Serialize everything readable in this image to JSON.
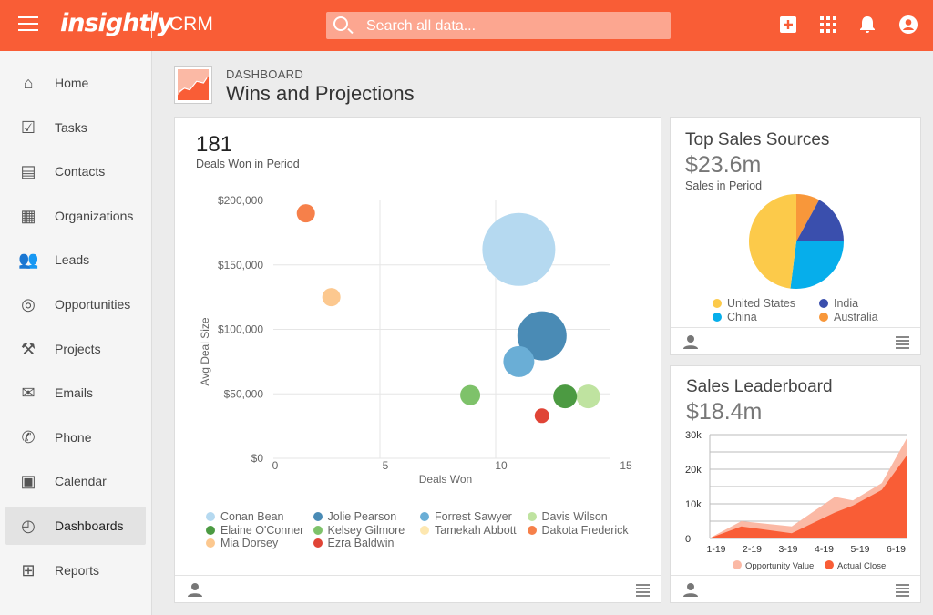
{
  "header": {
    "logo": "insightly",
    "app": "CRM",
    "search_placeholder": "Search all data..."
  },
  "sidebar": {
    "items": [
      {
        "label": "Home",
        "icon": "home-icon"
      },
      {
        "label": "Tasks",
        "icon": "checkbox-icon"
      },
      {
        "label": "Contacts",
        "icon": "contact-card-icon"
      },
      {
        "label": "Organizations",
        "icon": "building-icon"
      },
      {
        "label": "Leads",
        "icon": "people-icon"
      },
      {
        "label": "Opportunities",
        "icon": "target-icon"
      },
      {
        "label": "Projects",
        "icon": "hammer-icon"
      },
      {
        "label": "Emails",
        "icon": "envelope-icon"
      },
      {
        "label": "Phone",
        "icon": "phone-icon"
      },
      {
        "label": "Calendar",
        "icon": "calendar-icon"
      },
      {
        "label": "Dashboards",
        "icon": "gauge-icon",
        "active": true
      },
      {
        "label": "Reports",
        "icon": "report-icon"
      }
    ]
  },
  "page": {
    "breadcrumb": "DASHBOARD",
    "title": "Wins and Projections"
  },
  "colors": {
    "brand": "#f95d36"
  },
  "deals_card": {
    "value": "181",
    "label": "Deals Won in Period"
  },
  "sources_card": {
    "title": "Top Sales Sources",
    "value": "$23.6m",
    "label": "Sales in Period"
  },
  "leader_card": {
    "title": "Sales Leaderboard",
    "value": "$18.4m"
  },
  "chart_data": [
    {
      "type": "scatter",
      "xlabel": "Deals Won",
      "ylabel": "Avg Deal Size",
      "xlim": [
        0,
        15
      ],
      "ylim": [
        0,
        200000
      ],
      "xticks": [
        "0",
        "5",
        "10",
        "15"
      ],
      "yticks": [
        "$0",
        "$50,000",
        "$100,000",
        "$150,000",
        "$200,000"
      ],
      "grid": true,
      "legend": "bottom",
      "series": [
        {
          "name": "Conan Bean",
          "color": "#b5d9f0",
          "x": 11,
          "y": 162000,
          "size": 40
        },
        {
          "name": "Jolie Pearson",
          "color": "#4a8bb5",
          "x": 12,
          "y": 95000,
          "size": 27
        },
        {
          "name": "Forrest Sawyer",
          "color": "#6aaed6",
          "x": 11,
          "y": 75000,
          "size": 17
        },
        {
          "name": "Davis Wilson",
          "color": "#bfe3a0",
          "x": 14,
          "y": 48000,
          "size": 13
        },
        {
          "name": "Elaine O'Conner",
          "color": "#4c9a42",
          "x": 13,
          "y": 48000,
          "size": 13
        },
        {
          "name": "Kelsey Gilmore",
          "color": "#7ec26a",
          "x": 8.9,
          "y": 49000,
          "size": 11
        },
        {
          "name": "Tamekah Abbott",
          "color": "#fde7b0",
          "x": null,
          "y": null,
          "size": 0
        },
        {
          "name": "Dakota Frederick",
          "color": "#f6804a",
          "x": 1.8,
          "y": 190000,
          "size": 10
        },
        {
          "name": "Mia Dorsey",
          "color": "#fcc88f",
          "x": 2.9,
          "y": 125000,
          "size": 10
        },
        {
          "name": "Ezra Baldwin",
          "color": "#e04436",
          "x": 12,
          "y": 33000,
          "size": 8
        }
      ]
    },
    {
      "type": "pie",
      "legend": "bottom",
      "series": [
        {
          "name": "United States",
          "color": "#fcca4a",
          "value": 48
        },
        {
          "name": "India",
          "color": "#3a4fad",
          "value": 17
        },
        {
          "name": "China",
          "color": "#06aeeb",
          "value": 27
        },
        {
          "name": "Australia",
          "color": "#f8973a",
          "value": 8
        }
      ],
      "order": [
        "Australia",
        "India",
        "China",
        "United States"
      ]
    },
    {
      "type": "area",
      "ylim": [
        0,
        30000
      ],
      "yticks": [
        "0",
        "10k",
        "20k",
        "30k"
      ],
      "xticks": [
        "1-19",
        "2-19",
        "3-19",
        "4-19",
        "5-19",
        "6-19"
      ],
      "legend": "bottom",
      "x": [
        0.8,
        1.7,
        3.1,
        4.3,
        4.8,
        5.6,
        6.3
      ],
      "series": [
        {
          "name": "Opportunity Value",
          "color": "#fbb9a5",
          "values": [
            0,
            5000,
            3500,
            12000,
            11000,
            16000,
            29000
          ]
        },
        {
          "name": "Actual Close",
          "color": "#f95d36",
          "values": [
            0,
            3500,
            1500,
            7500,
            9500,
            14000,
            24000
          ]
        }
      ]
    }
  ]
}
